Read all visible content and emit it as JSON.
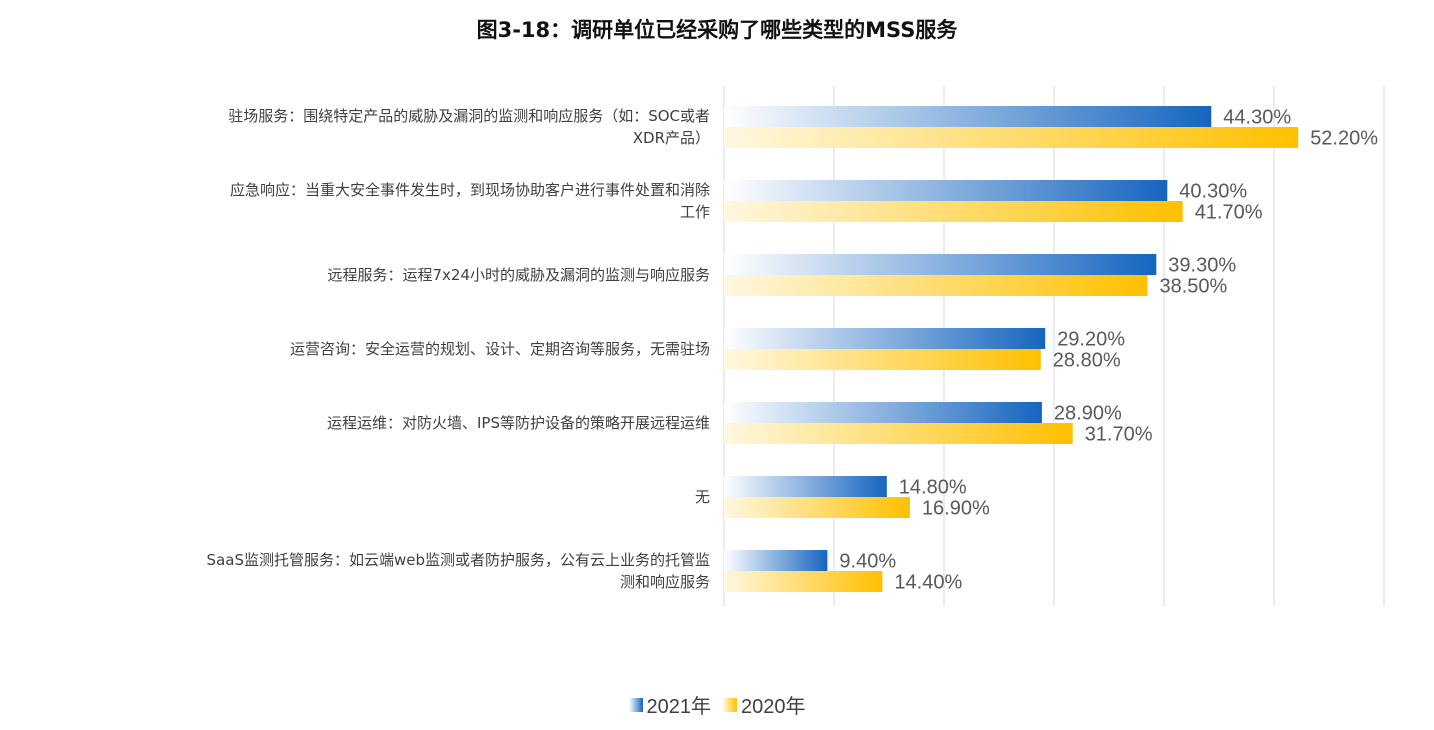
{
  "chart_data": {
    "type": "bar",
    "orientation": "horizontal",
    "title": "图3-18：调研单位已经采购了哪些类型的MSS服务",
    "categories": [
      "驻场服务：围绕特定产品的威胁及漏洞的监测和响应服务（如：SOC或者XDR产品）",
      "应急响应：当重大安全事件发生时，到现场协助客户进行事件处置和消除工作",
      "远程服务：运程7x24小时的威胁及漏洞的监测与响应服务",
      "运营咨询：安全运营的规划、设计、定期咨询等服务，无需驻场",
      "运程运维：对防火墙、IPS等防护设备的策略开展远程运维",
      "无",
      "SaaS监测托管服务：如云端web监测或者防护服务，公有云上业务的托管监测和响应服务"
    ],
    "category_lines": [
      [
        "驻场服务：围绕特定产品的威胁及漏洞的监测和响应服务（如：SOC或者",
        "XDR产品）"
      ],
      [
        "应急响应：当重大安全事件发生时，到现场协助客户进行事件处置和消除",
        "工作"
      ],
      [
        "远程服务：运程7x24小时的威胁及漏洞的监测与响应服务"
      ],
      [
        "运营咨询：安全运营的规划、设计、定期咨询等服务，无需驻场"
      ],
      [
        "运程运维：对防火墙、IPS等防护设备的策略开展远程运维"
      ],
      [
        "无"
      ],
      [
        "SaaS监测托管服务：如云端web监测或者防护服务，公有云上业务的托管监",
        "测和响应服务"
      ]
    ],
    "series": [
      {
        "name": "2021年",
        "values": [
          44.3,
          40.3,
          39.3,
          29.2,
          28.9,
          14.8,
          9.4
        ],
        "labels": [
          "44.30%",
          "40.30%",
          "39.30%",
          "29.20%",
          "28.90%",
          "14.80%",
          "9.40%"
        ],
        "color": "#1565C0",
        "gradient_start": "#FFFFFF"
      },
      {
        "name": "2020年",
        "values": [
          52.2,
          41.7,
          38.5,
          28.8,
          31.7,
          16.9,
          14.4
        ],
        "labels": [
          "52.20%",
          "41.70%",
          "38.50%",
          "28.80%",
          "31.70%",
          "16.90%",
          "14.40%"
        ],
        "color": "#FFC000",
        "gradient_start": "#FFF8E1"
      }
    ],
    "xlim": [
      0,
      60
    ],
    "gridlines": "vertical",
    "legend_position": "bottom"
  }
}
